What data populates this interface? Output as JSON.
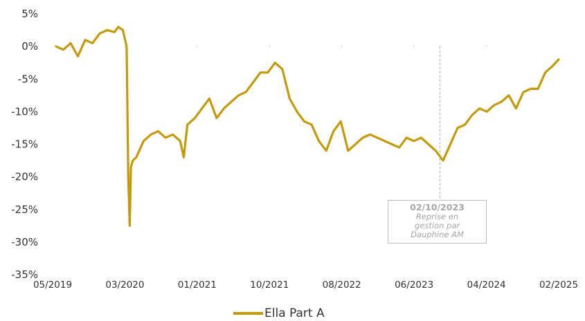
{
  "chart_data": {
    "type": "line",
    "title": "",
    "xlabel": "",
    "ylabel": "",
    "ylim": [
      -35,
      5
    ],
    "y_ticks": [
      "5%",
      "0%",
      "-5%",
      "-10%",
      "-15%",
      "-20%",
      "-25%",
      "-30%",
      "-35%"
    ],
    "y_tick_values": [
      5,
      0,
      -5,
      -10,
      -15,
      -20,
      -25,
      -30,
      -35
    ],
    "x_ticks": [
      "05/2019",
      "03/2020",
      "01/2021",
      "10/2021",
      "08/2022",
      "06/2023",
      "04/2024",
      "02/2025"
    ],
    "x_range": [
      "2019-05",
      "2025-02"
    ],
    "grid": false,
    "legend_position": "bottom-center",
    "series": [
      {
        "name": "Ella Part A",
        "color": "#c49a0a",
        "x": [
          "2019-05-15",
          "2019-06-15",
          "2019-07-15",
          "2019-08-15",
          "2019-09-15",
          "2019-10-15",
          "2019-11-15",
          "2019-12-15",
          "2020-01-15",
          "2020-02-01",
          "2020-02-20",
          "2020-03-05",
          "2020-03-12",
          "2020-03-18",
          "2020-03-23",
          "2020-03-31",
          "2020-04-15",
          "2020-05-15",
          "2020-06-15",
          "2020-07-15",
          "2020-08-15",
          "2020-09-15",
          "2020-10-15",
          "2020-10-30",
          "2020-11-15",
          "2020-12-15",
          "2021-01-15",
          "2021-02-15",
          "2021-03-15",
          "2021-04-15",
          "2021-05-15",
          "2021-06-15",
          "2021-07-15",
          "2021-08-15",
          "2021-09-15",
          "2021-10-15",
          "2021-11-15",
          "2021-12-15",
          "2022-01-15",
          "2022-02-15",
          "2022-03-15",
          "2022-04-15",
          "2022-05-15",
          "2022-06-15",
          "2022-07-15",
          "2022-08-15",
          "2022-09-15",
          "2022-10-15",
          "2022-11-15",
          "2022-12-15",
          "2023-01-15",
          "2023-02-15",
          "2023-03-15",
          "2023-04-15",
          "2023-05-15",
          "2023-06-15",
          "2023-07-15",
          "2023-08-15",
          "2023-09-15",
          "2023-10-15",
          "2023-11-15",
          "2023-12-15",
          "2024-01-15",
          "2024-02-15",
          "2024-03-15",
          "2024-04-15",
          "2024-05-15",
          "2024-06-15",
          "2024-07-15",
          "2024-08-15",
          "2024-09-15",
          "2024-10-15",
          "2024-11-15",
          "2024-12-15",
          "2025-01-15",
          "2025-02-10"
        ],
        "values": [
          0,
          -0.5,
          0.5,
          -1.5,
          1.0,
          0.5,
          2.0,
          2.5,
          2.2,
          3.0,
          2.5,
          0,
          -20,
          -27.5,
          -18.5,
          -17.5,
          -17.0,
          -14.5,
          -13.5,
          -13.0,
          -14.0,
          -13.5,
          -14.5,
          -17.0,
          -12.0,
          -11.0,
          -9.5,
          -8.0,
          -11.0,
          -9.5,
          -8.5,
          -7.5,
          -7.0,
          -5.5,
          -4.0,
          -4.0,
          -2.5,
          -3.5,
          -8.0,
          -10.0,
          -11.5,
          -12.0,
          -14.5,
          -16.0,
          -13.0,
          -11.5,
          -16.0,
          -15.0,
          -14.0,
          -13.5,
          -14.0,
          -14.5,
          -15.0,
          -15.5,
          -14.0,
          -14.5,
          -14.0,
          -15.0,
          -16.0,
          -17.5,
          -15.0,
          -12.5,
          -12.0,
          -10.5,
          -9.5,
          -10.0,
          -9.0,
          -8.5,
          -7.5,
          -9.5,
          -7.0,
          -6.5,
          -6.5,
          -4.0,
          -3.0,
          -2.0
        ]
      }
    ],
    "annotations": [
      {
        "date": "02/10/2023",
        "x": "2023-10-02",
        "text": "Reprise en gestion par Dauphine AM",
        "line_style": "dashed"
      }
    ]
  }
}
